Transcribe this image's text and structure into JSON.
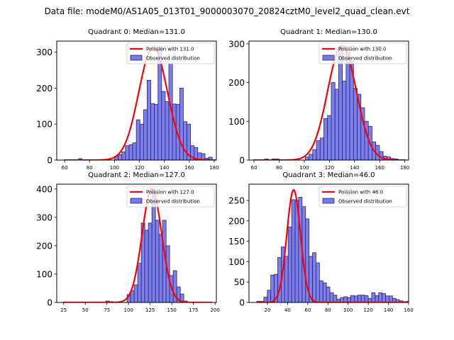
{
  "suptitle": "Data file: modeM0/AS1A05_013T01_9000003070_20824cztM0_level2_quad_clean.evt",
  "colors": {
    "bar_fill": "#7777f2",
    "bar_edge": "#2a2a55",
    "poisson_line": "#ff0000"
  },
  "chart_data": [
    {
      "type": "bar",
      "title": "Quadrant 0: Median=131.0",
      "xlabel": "",
      "ylabel": "",
      "xlim": [
        53.7,
        181.7
      ],
      "ylim": [
        0,
        331
      ],
      "xticks": [
        60,
        80,
        100,
        120,
        140,
        160,
        180
      ],
      "yticks": [
        0,
        100,
        200,
        300
      ],
      "legend_position": "top-right",
      "legend": [
        "Poission with 131.0",
        "Observed distribution"
      ],
      "bin_start": 59.5,
      "bin_width": 2.9,
      "values": [
        0,
        0,
        0,
        0,
        4,
        0,
        0,
        0,
        0,
        0,
        0,
        0,
        0,
        0,
        11,
        15,
        23,
        40,
        43,
        48,
        112,
        100,
        140,
        222,
        157,
        155,
        314,
        191,
        163,
        270,
        156,
        155,
        200,
        107,
        100,
        40,
        35,
        20,
        18,
        5,
        8,
        0
      ],
      "poisson_mean": 131.0,
      "poisson_peak": 314
    },
    {
      "type": "bar",
      "title": "Quadrant 1: Median=130.0",
      "xlabel": "",
      "ylabel": "",
      "xlim": [
        56.0,
        183.0
      ],
      "ylim": [
        0,
        307
      ],
      "xticks": [
        60,
        80,
        100,
        120,
        140,
        160,
        180
      ],
      "yticks": [
        0,
        100,
        200,
        300
      ],
      "legend_position": "top-right",
      "legend": [
        "Poission with 130.0",
        "Observed distribution"
      ],
      "bin_start": 59.5,
      "bin_width": 2.95,
      "values": [
        0,
        0,
        0,
        3,
        0,
        3,
        3,
        0,
        0,
        0,
        0,
        0,
        0,
        0,
        8,
        15,
        27,
        50,
        57,
        107,
        115,
        200,
        183,
        292,
        204,
        278,
        255,
        185,
        170,
        135,
        100,
        87,
        47,
        38,
        22,
        10,
        8,
        4,
        3,
        0,
        0
      ],
      "poisson_mean": 130.0,
      "poisson_peak": 295
    },
    {
      "type": "bar",
      "title": "Quadrant 2: Median=127.0",
      "xlabel": "",
      "ylabel": "",
      "xlim": [
        17.0,
        201.5
      ],
      "ylim": [
        0,
        417
      ],
      "xticks": [
        25,
        50,
        75,
        100,
        125,
        150,
        175,
        200
      ],
      "yticks": [
        0,
        100,
        200,
        300,
        400
      ],
      "legend_position": "top-right",
      "legend": [
        "Poission with 127.0",
        "Observed distribution"
      ],
      "bin_start": 24.5,
      "bin_width": 4.1,
      "values": [
        0,
        0,
        0,
        0,
        0,
        0,
        0,
        0,
        0,
        0,
        0,
        0,
        5,
        3,
        0,
        0,
        0,
        0,
        28,
        42,
        62,
        138,
        280,
        255,
        280,
        400,
        290,
        240,
        290,
        200,
        95,
        112,
        55,
        30,
        5,
        0,
        0,
        0,
        0,
        0,
        0,
        0
      ],
      "poisson_mean": 127.0,
      "poisson_peak": 400
    },
    {
      "type": "bar",
      "title": "Quadrant 3: Median=46.0",
      "xlabel": "",
      "ylabel": "",
      "xlim": [
        1.7,
        160.0
      ],
      "ylim": [
        0,
        290
      ],
      "xticks": [
        20,
        40,
        60,
        80,
        100,
        120,
        140,
        160
      ],
      "yticks": [
        0,
        50,
        100,
        150,
        200,
        250
      ],
      "legend_position": "top-right",
      "legend": [
        "Poission with 46.0",
        "Observed distribution"
      ],
      "bin_start": 9.5,
      "bin_width": 3.45,
      "values": [
        3,
        3,
        13,
        30,
        67,
        69,
        110,
        136,
        113,
        185,
        252,
        250,
        258,
        235,
        205,
        113,
        122,
        97,
        53,
        48,
        38,
        24,
        18,
        8,
        12,
        14,
        12,
        17,
        16,
        18,
        18,
        17,
        10,
        24,
        17,
        24,
        22,
        16,
        16,
        10,
        7,
        4,
        2,
        3,
        0,
        0
      ],
      "poisson_mean": 46.0,
      "poisson_peak": 276
    }
  ]
}
